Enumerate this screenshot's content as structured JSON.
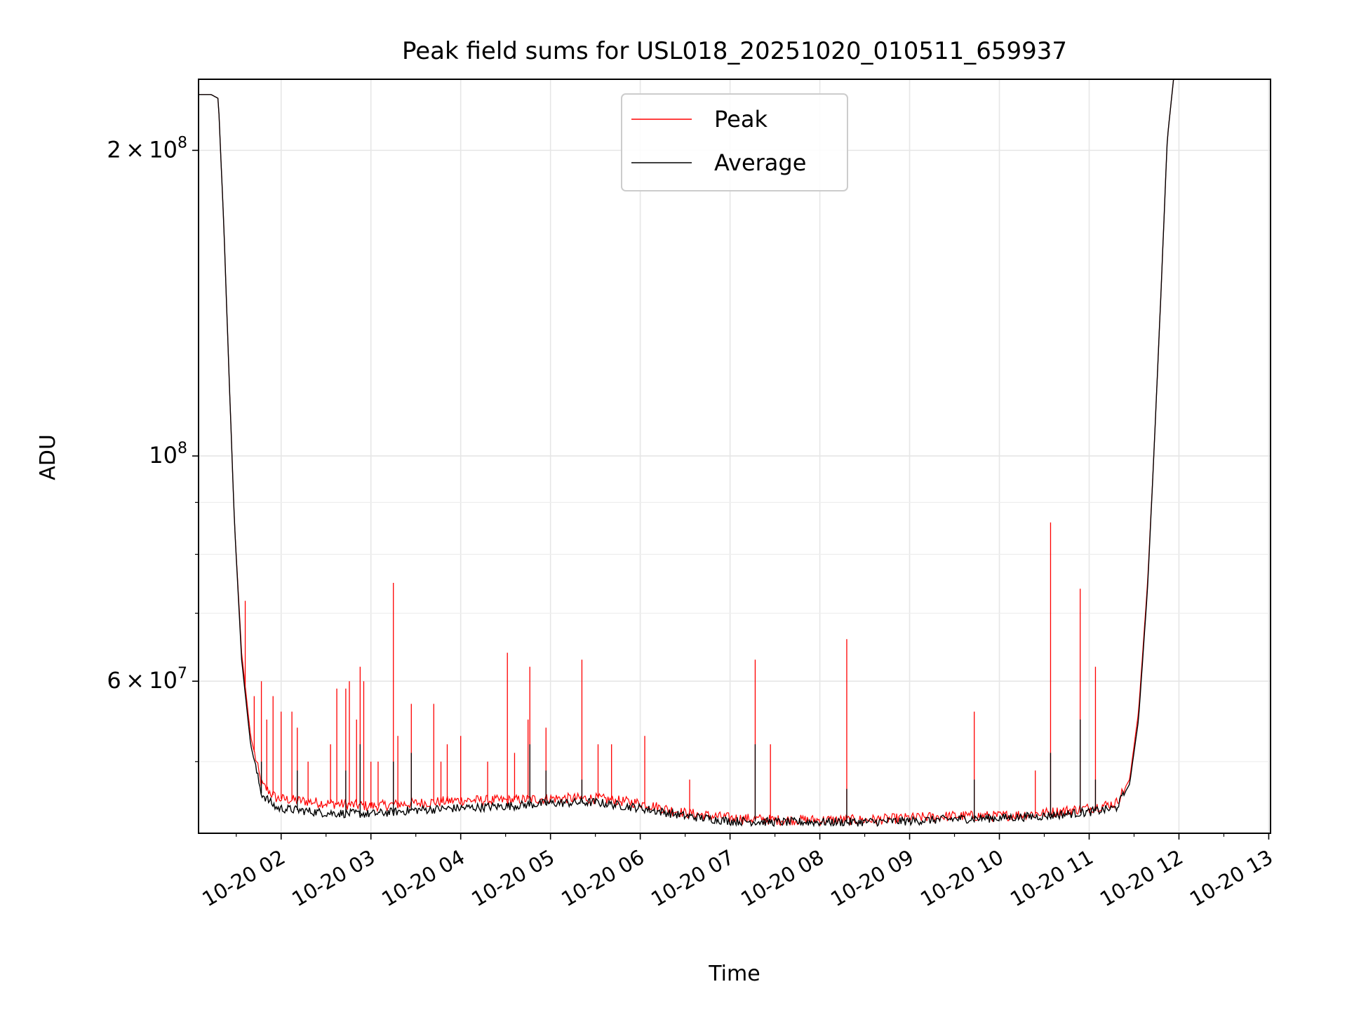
{
  "chart_data": {
    "type": "line",
    "title": "Peak field sums for USL018_20251020_010511_659937",
    "xlabel": "Time",
    "ylabel": "ADU",
    "yscale": "log",
    "ylim": [
      42500000,
      235000000
    ],
    "xlim_hours": [
      1.08,
      13.02
    ],
    "grid": true,
    "legend_position": "upper center",
    "x_ticks": [
      {
        "hour": 2,
        "label": "10-20 02"
      },
      {
        "hour": 3,
        "label": "10-20 03"
      },
      {
        "hour": 4,
        "label": "10-20 04"
      },
      {
        "hour": 5,
        "label": "10-20 05"
      },
      {
        "hour": 6,
        "label": "10-20 06"
      },
      {
        "hour": 7,
        "label": "10-20 07"
      },
      {
        "hour": 8,
        "label": "10-20 08"
      },
      {
        "hour": 9,
        "label": "10-20 09"
      },
      {
        "hour": 10,
        "label": "10-20 10"
      },
      {
        "hour": 11,
        "label": "10-20 11"
      },
      {
        "hour": 12,
        "label": "10-20 12"
      },
      {
        "hour": 13,
        "label": "10-20 13"
      }
    ],
    "y_major_ticks": [
      {
        "value": 60000000,
        "mantissa": "6",
        "exponent": "7",
        "times": true
      },
      {
        "value": 100000000,
        "mantissa": "10",
        "exponent": "8",
        "times": false
      },
      {
        "value": 200000000,
        "mantissa": "2",
        "exponent": "8",
        "times": true
      }
    ],
    "y_minor_ticks": [
      50000000,
      70000000,
      80000000,
      90000000
    ],
    "series": [
      {
        "name": "Peak",
        "color": "#ff0000",
        "baseline": [
          [
            1.08,
            227000000.0
          ],
          [
            1.22,
            227000000.0
          ],
          [
            1.3,
            225000000.0
          ],
          [
            1.36,
            170000000.0
          ],
          [
            1.42,
            120000000.0
          ],
          [
            1.48,
            86000000.0
          ],
          [
            1.56,
            64000000.0
          ],
          [
            1.66,
            53000000.0
          ],
          [
            1.78,
            47500000.0
          ],
          [
            1.95,
            46000000.0
          ],
          [
            2.5,
            45500000.0
          ],
          [
            3.0,
            45200000.0
          ],
          [
            3.5,
            45500000.0
          ],
          [
            4.0,
            45800000.0
          ],
          [
            4.5,
            45800000.0
          ],
          [
            5.0,
            46000000.0
          ],
          [
            5.5,
            46000000.0
          ],
          [
            6.0,
            45500000.0
          ],
          [
            6.5,
            44500000.0
          ],
          [
            7.0,
            44000000.0
          ],
          [
            7.5,
            43800000.0
          ],
          [
            8.0,
            43800000.0
          ],
          [
            8.5,
            43800000.0
          ],
          [
            9.0,
            44000000.0
          ],
          [
            9.5,
            44200000.0
          ],
          [
            10.0,
            44200000.0
          ],
          [
            10.5,
            44500000.0
          ],
          [
            11.0,
            45000000.0
          ],
          [
            11.3,
            45500000.0
          ],
          [
            11.45,
            48000000.0
          ],
          [
            11.55,
            56000000.0
          ],
          [
            11.65,
            75000000.0
          ],
          [
            11.72,
            100000000.0
          ],
          [
            11.8,
            145000000.0
          ],
          [
            11.87,
            205000000.0
          ],
          [
            11.95,
            240000000.0
          ]
        ],
        "spikes": [
          [
            1.6,
            72000000.0
          ],
          [
            1.7,
            58000000.0
          ],
          [
            1.78,
            60000000.0
          ],
          [
            1.84,
            55000000.0
          ],
          [
            1.91,
            58000000.0
          ],
          [
            2.0,
            56000000.0
          ],
          [
            2.12,
            56000000.0
          ],
          [
            2.18,
            54000000.0
          ],
          [
            2.3,
            50000000.0
          ],
          [
            2.55,
            52000000.0
          ],
          [
            2.62,
            59000000.0
          ],
          [
            2.72,
            59000000.0
          ],
          [
            2.76,
            60000000.0
          ],
          [
            2.84,
            55000000.0
          ],
          [
            2.88,
            62000000.0
          ],
          [
            2.92,
            60000000.0
          ],
          [
            3.0,
            50000000.0
          ],
          [
            3.08,
            50000000.0
          ],
          [
            3.25,
            75000000.0
          ],
          [
            3.3,
            53000000.0
          ],
          [
            3.45,
            57000000.0
          ],
          [
            3.7,
            57000000.0
          ],
          [
            3.78,
            50000000.0
          ],
          [
            3.85,
            52000000.0
          ],
          [
            4.0,
            53000000.0
          ],
          [
            4.3,
            50000000.0
          ],
          [
            4.52,
            64000000.0
          ],
          [
            4.6,
            51000000.0
          ],
          [
            4.75,
            55000000.0
          ],
          [
            4.77,
            62000000.0
          ],
          [
            4.95,
            54000000.0
          ],
          [
            5.35,
            63000000.0
          ],
          [
            5.53,
            52000000.0
          ],
          [
            5.68,
            52000000.0
          ],
          [
            6.05,
            53000000.0
          ],
          [
            6.55,
            48000000.0
          ],
          [
            7.28,
            63000000.0
          ],
          [
            7.45,
            52000000.0
          ],
          [
            8.3,
            66000000.0
          ],
          [
            9.72,
            56000000.0
          ],
          [
            10.4,
            49000000.0
          ],
          [
            10.57,
            86000000.0
          ],
          [
            10.9,
            74000000.0
          ],
          [
            11.07,
            62000000.0
          ]
        ]
      },
      {
        "name": "Average",
        "color": "#000000",
        "baseline": [
          [
            1.08,
            227000000.0
          ],
          [
            1.22,
            227000000.0
          ],
          [
            1.3,
            225000000.0
          ],
          [
            1.36,
            170000000.0
          ],
          [
            1.42,
            120000000.0
          ],
          [
            1.48,
            86000000.0
          ],
          [
            1.56,
            63000000.0
          ],
          [
            1.66,
            52000000.0
          ],
          [
            1.78,
            46500000.0
          ],
          [
            1.95,
            45000000.0
          ],
          [
            2.5,
            44500000.0
          ],
          [
            3.0,
            44400000.0
          ],
          [
            3.5,
            44800000.0
          ],
          [
            4.0,
            45000000.0
          ],
          [
            4.5,
            45200000.0
          ],
          [
            5.0,
            45500000.0
          ],
          [
            5.5,
            45600000.0
          ],
          [
            6.0,
            45000000.0
          ],
          [
            6.5,
            44200000.0
          ],
          [
            7.0,
            43700000.0
          ],
          [
            7.5,
            43600000.0
          ],
          [
            8.0,
            43600000.0
          ],
          [
            8.5,
            43600000.0
          ],
          [
            9.0,
            43700000.0
          ],
          [
            9.5,
            43900000.0
          ],
          [
            10.0,
            44000000.0
          ],
          [
            10.5,
            44200000.0
          ],
          [
            11.0,
            44600000.0
          ],
          [
            11.3,
            45000000.0
          ],
          [
            11.45,
            47500000.0
          ],
          [
            11.55,
            55000000.0
          ],
          [
            11.65,
            74000000.0
          ],
          [
            11.72,
            100000000.0
          ],
          [
            11.8,
            145000000.0
          ],
          [
            11.87,
            205000000.0
          ],
          [
            11.95,
            240000000.0
          ]
        ],
        "spikes": [
          [
            1.78,
            50000000.0
          ],
          [
            2.18,
            49000000.0
          ],
          [
            2.72,
            49000000.0
          ],
          [
            2.88,
            52000000.0
          ],
          [
            3.25,
            50000000.0
          ],
          [
            3.45,
            51000000.0
          ],
          [
            4.77,
            52000000.0
          ],
          [
            4.95,
            49000000.0
          ],
          [
            5.35,
            48000000.0
          ],
          [
            7.28,
            52000000.0
          ],
          [
            8.3,
            47000000.0
          ],
          [
            9.72,
            48000000.0
          ],
          [
            10.57,
            51000000.0
          ],
          [
            10.9,
            55000000.0
          ],
          [
            11.07,
            48000000.0
          ]
        ]
      }
    ]
  }
}
